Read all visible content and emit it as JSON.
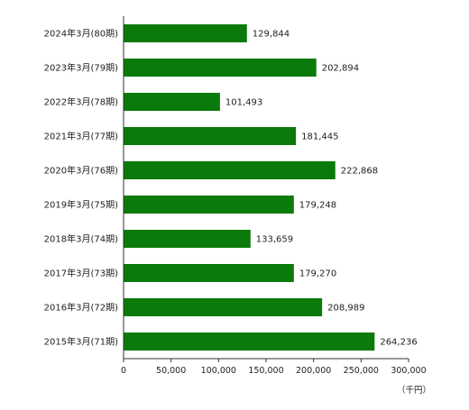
{
  "chart_data": {
    "type": "bar",
    "orientation": "horizontal",
    "categories": [
      "2024年3月(80期)",
      "2023年3月(79期)",
      "2022年3月(78期)",
      "2021年3月(77期)",
      "2020年3月(76期)",
      "2019年3月(75期)",
      "2018年3月(74期)",
      "2017年3月(73期)",
      "2016年3月(72期)",
      "2015年3月(71期)"
    ],
    "values": [
      129844,
      202894,
      101493,
      181445,
      222868,
      179248,
      133659,
      179270,
      208989,
      264236
    ],
    "value_labels": [
      "129,844",
      "202,894",
      "101,493",
      "181,445",
      "222,868",
      "179,248",
      "133,659",
      "179,270",
      "208,989",
      "264,236"
    ],
    "x_ticks": [
      0,
      50000,
      100000,
      150000,
      200000,
      250000,
      300000
    ],
    "x_tick_labels": [
      "0",
      "50,000",
      "100,000",
      "150,000",
      "200,000",
      "250,000",
      "300,000"
    ],
    "xlim": [
      0,
      300000
    ],
    "unit": "（千円）",
    "grid": false,
    "bar_color": "#0a7a0a"
  }
}
